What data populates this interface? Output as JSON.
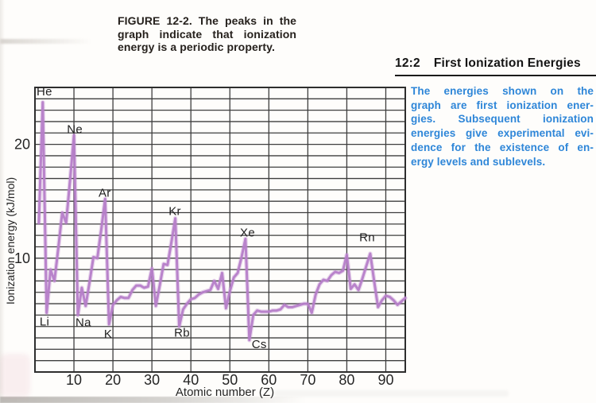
{
  "page": {
    "figure_caption_lines": [
      "FIGURE 12-2. The peaks in the",
      "graph indicate that ionization",
      "energy is a periodic property."
    ],
    "section_heading": {
      "number": "12:2",
      "title": "First Ionization Energies"
    },
    "note_lines": [
      "The energies shown on the",
      "graph are first ionization ener-",
      "gies. Subsequent ionization",
      "energies give experimental evi-",
      "dence for the existence of en-",
      "ergy levels and sublevels."
    ]
  },
  "colors": {
    "accent_blue": "#2e86d8",
    "curve_purple": "#b67ec9",
    "grid_gray": "#3e3e3e",
    "text_dark": "#1f1f1f"
  },
  "chart_data": {
    "type": "line",
    "title": "",
    "xlabel": "Atomic number (Z)",
    "ylabel": "Ionization energy (kJ/mol)",
    "xlim": [
      0,
      95
    ],
    "ylim": [
      0,
      25
    ],
    "x_ticks": [
      10,
      20,
      30,
      40,
      50,
      60,
      70,
      80,
      90
    ],
    "y_ticks": [
      10,
      20
    ],
    "grid": {
      "x_step": 10,
      "y_step": 1,
      "on": true
    },
    "legend": "none",
    "series": [
      {
        "name": "first_ionization_energy_in_100_kJ_per_mol",
        "z": [
          1,
          2,
          3,
          4,
          5,
          6,
          7,
          8,
          9,
          10,
          11,
          12,
          13,
          14,
          15,
          16,
          17,
          18,
          19,
          20,
          21,
          22,
          23,
          24,
          25,
          26,
          27,
          28,
          29,
          30,
          31,
          32,
          33,
          34,
          35,
          36,
          37,
          38,
          39,
          40,
          41,
          42,
          43,
          44,
          45,
          46,
          47,
          48,
          49,
          50,
          51,
          52,
          53,
          54,
          55,
          56,
          57,
          58,
          59,
          60,
          61,
          62,
          63,
          64,
          65,
          66,
          67,
          68,
          69,
          70,
          71,
          72,
          73,
          74,
          75,
          76,
          77,
          78,
          79,
          80,
          81,
          82,
          83,
          84,
          85,
          86,
          87,
          88,
          89,
          90,
          91,
          92,
          93,
          94,
          95
        ],
        "y": [
          13.1,
          23.7,
          5.2,
          9.0,
          8.0,
          10.9,
          14.0,
          13.1,
          16.8,
          20.8,
          5.0,
          7.4,
          5.8,
          7.9,
          10.1,
          10.0,
          12.5,
          15.2,
          4.2,
          5.9,
          6.3,
          6.6,
          6.5,
          6.5,
          7.2,
          7.6,
          7.6,
          7.4,
          7.5,
          9.1,
          5.8,
          7.6,
          9.5,
          9.4,
          11.4,
          13.5,
          4.0,
          5.5,
          6.0,
          6.4,
          6.5,
          6.8,
          7.0,
          7.1,
          7.2,
          8.0,
          7.3,
          8.7,
          5.6,
          7.1,
          8.3,
          8.7,
          10.1,
          11.7,
          2.8,
          5.0,
          5.4,
          5.3,
          5.3,
          5.3,
          5.4,
          5.4,
          5.5,
          5.9,
          5.7,
          5.7,
          5.8,
          5.9,
          6.0,
          6.0,
          5.2,
          6.8,
          7.7,
          8.1,
          8.0,
          8.5,
          8.8,
          8.7,
          8.9,
          10.3,
          7.3,
          7.7,
          7.2,
          8.2,
          9.3,
          10.4,
          8.0,
          5.7,
          6.3,
          6.7,
          6.6,
          6.3,
          5.9,
          6.2,
          6.5
        ]
      }
    ],
    "point_labels": [
      {
        "text": "He",
        "z": 0.4,
        "v": 24.3
      },
      {
        "text": "Ne",
        "z": 8.2,
        "v": 21.0
      },
      {
        "text": "Ar",
        "z": 16.3,
        "v": 15.4
      },
      {
        "text": "Kr",
        "z": 34.3,
        "v": 13.8
      },
      {
        "text": "Xe",
        "z": 52.6,
        "v": 11.9
      },
      {
        "text": "Rn",
        "z": 83.2,
        "v": 11.5
      },
      {
        "text": "Li",
        "z": 1.2,
        "v": 4.1
      },
      {
        "text": "Na",
        "z": 10.4,
        "v": 4.0
      },
      {
        "text": "K",
        "z": 17.7,
        "v": 3.0
      },
      {
        "text": "Rb",
        "z": 35.7,
        "v": 3.1
      },
      {
        "text": "Cs",
        "z": 55.6,
        "v": 2.1
      }
    ]
  }
}
